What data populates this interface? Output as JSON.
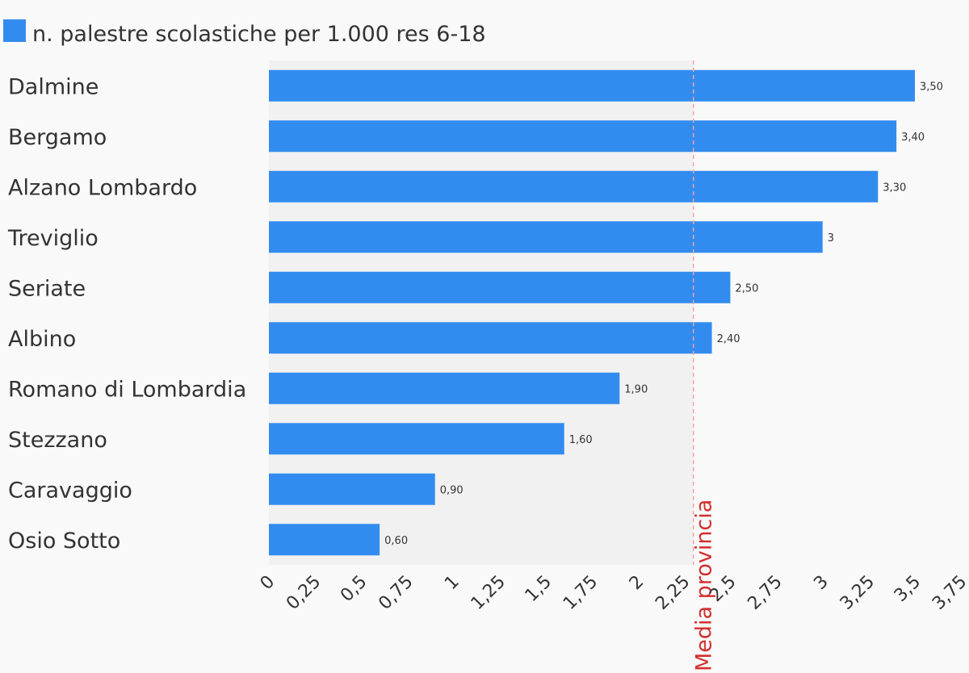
{
  "chart_data": {
    "type": "bar",
    "orientation": "horizontal",
    "categories": [
      "Dalmine",
      "Bergamo",
      "Alzano Lombardo",
      "Treviglio",
      "Seriate",
      "Albino",
      "Romano di Lombardia",
      "Stezzano",
      "Caravaggio",
      "Osio Sotto"
    ],
    "series": [
      {
        "name": "n. palestre scolastiche per 1.000 res 6-18",
        "values": [
          3.5,
          3.4,
          3.3,
          3.0,
          2.5,
          2.4,
          1.9,
          1.6,
          0.9,
          0.6
        ],
        "value_labels": [
          "3,50",
          "3,40",
          "3,30",
          "3",
          "2,50",
          "2,40",
          "1,90",
          "1,60",
          "0,90",
          "0,60"
        ],
        "color": "#328cef"
      }
    ],
    "xlim": [
      0,
      3.75
    ],
    "x_ticks": [
      0,
      0.25,
      0.5,
      0.75,
      1,
      1.25,
      1.5,
      1.75,
      2,
      2.25,
      2.5,
      2.75,
      3,
      3.25,
      3.5,
      3.75
    ],
    "x_tick_labels": [
      "0",
      "0,25",
      "0,5",
      "0,75",
      "1",
      "1,25",
      "1,5",
      "1,75",
      "2",
      "2,25",
      "2,5",
      "2,75",
      "3",
      "3,25",
      "3,5",
      "3,75"
    ],
    "reference_line": {
      "label": "Media provincia",
      "value": 2.3,
      "color": "#d32f2f",
      "shaded_region_color": "#f1f1f1"
    },
    "legend_position": "top-left",
    "grid": false,
    "title": "",
    "xlabel": "",
    "ylabel": ""
  }
}
